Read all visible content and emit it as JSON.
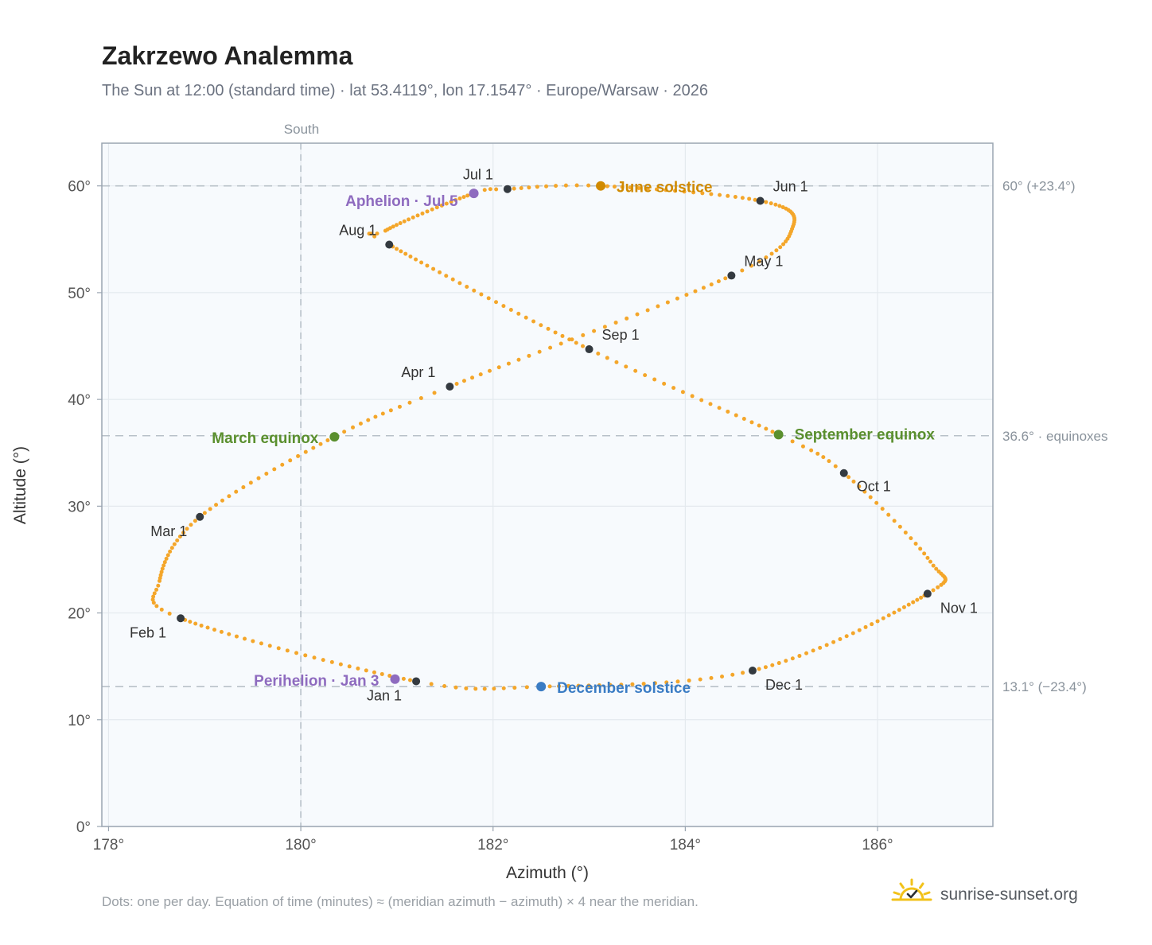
{
  "header": {
    "title": "Zakrzewo Analemma",
    "subtitle": "The Sun at 12:00 (standard time) · lat 53.4119°, lon 17.1547° · Europe/Warsaw · 2026"
  },
  "footer": {
    "note": "Dots: one per day. Equation of time (minutes) ≈ (meridian azimuth − azimuth) × 4 near the meridian.",
    "brand": "sunrise-sunset.org"
  },
  "colors": {
    "dots": "#f4a62a",
    "month_marker": "#343a40",
    "aphelion": "#8e6bbf",
    "june_solstice": "#d08a00",
    "equinox": "#5a8f2e",
    "december_solstice": "#3a7cc4",
    "grid": "#e4e9ee",
    "ref_line": "#b8c1c9",
    "plot_bg": "#f7fafd"
  },
  "chart_data": {
    "type": "scatter",
    "title": "Zakrzewo Analemma",
    "xlabel": "Azimuth (°)",
    "ylabel": "Altitude (°)",
    "xlim": [
      177.93,
      187.2
    ],
    "ylim": [
      0,
      64
    ],
    "x_ticks": [
      178,
      180,
      182,
      184,
      186
    ],
    "x_tick_labels": [
      "178°",
      "180°",
      "182°",
      "184°",
      "186°"
    ],
    "y_ticks": [
      0,
      10,
      20,
      30,
      40,
      50,
      60
    ],
    "y_tick_labels": [
      "0°",
      "10°",
      "20°",
      "30°",
      "40°",
      "50°",
      "60°"
    ],
    "grid": true,
    "meridian": {
      "azimuth": 180,
      "label": "South"
    },
    "reference_lines": [
      {
        "altitude": 60,
        "label": "60° (+23.4°)"
      },
      {
        "altitude": 36.6,
        "label": "36.6° · equinoxes"
      },
      {
        "altitude": 13.1,
        "label": "13.1° (−23.4°)"
      }
    ],
    "month_markers": [
      {
        "label": "Jan 1",
        "az": 181.2,
        "alt": 13.6
      },
      {
        "label": "Feb 1",
        "az": 178.75,
        "alt": 19.5
      },
      {
        "label": "Mar 1",
        "az": 178.95,
        "alt": 29.0
      },
      {
        "label": "Apr 1",
        "az": 181.55,
        "alt": 41.2
      },
      {
        "label": "May 1",
        "az": 184.48,
        "alt": 51.6
      },
      {
        "label": "Jun 1",
        "az": 184.78,
        "alt": 58.6
      },
      {
        "label": "Jul 1",
        "az": 182.15,
        "alt": 59.7
      },
      {
        "label": "Aug 1",
        "az": 180.92,
        "alt": 54.5
      },
      {
        "label": "Sep 1",
        "az": 183.0,
        "alt": 44.7
      },
      {
        "label": "Oct 1",
        "az": 185.65,
        "alt": 33.1
      },
      {
        "label": "Nov 1",
        "az": 186.52,
        "alt": 21.8
      },
      {
        "label": "Dec 1",
        "az": 184.7,
        "alt": 14.6
      }
    ],
    "events": [
      {
        "label": "Aphelion · Jul 5",
        "az": 181.8,
        "alt": 59.3,
        "kind": "aphelion"
      },
      {
        "label": "June solstice",
        "az": 183.12,
        "alt": 60.0,
        "kind": "june_solstice"
      },
      {
        "label": "March equinox",
        "az": 180.35,
        "alt": 36.5,
        "kind": "equinox"
      },
      {
        "label": "September equinox",
        "az": 184.97,
        "alt": 36.7,
        "kind": "equinox"
      },
      {
        "label": "Perihelion · Jan 3",
        "az": 180.98,
        "alt": 13.8,
        "kind": "aphelion"
      },
      {
        "label": "December solstice",
        "az": 182.5,
        "alt": 13.1,
        "kind": "december_solstice"
      }
    ],
    "path_keypoints": [
      {
        "day": 0,
        "az": 181.2,
        "alt": 13.6
      },
      {
        "day": 31,
        "az": 178.75,
        "alt": 19.5
      },
      {
        "day": 41,
        "az": 178.53,
        "alt": 23.0
      },
      {
        "day": 59,
        "az": 178.95,
        "alt": 29.0
      },
      {
        "day": 78,
        "az": 180.35,
        "alt": 36.5
      },
      {
        "day": 90,
        "az": 181.55,
        "alt": 41.2
      },
      {
        "day": 120,
        "az": 184.48,
        "alt": 51.6
      },
      {
        "day": 135,
        "az": 185.12,
        "alt": 56.2
      },
      {
        "day": 151,
        "az": 184.78,
        "alt": 58.6
      },
      {
        "day": 171,
        "az": 183.12,
        "alt": 60.0
      },
      {
        "day": 181,
        "az": 182.15,
        "alt": 59.7
      },
      {
        "day": 185,
        "az": 181.8,
        "alt": 59.3
      },
      {
        "day": 207,
        "az": 180.88,
        "alt": 55.8
      },
      {
        "day": 212,
        "az": 180.92,
        "alt": 54.5
      },
      {
        "day": 243,
        "az": 183.0,
        "alt": 44.7
      },
      {
        "day": 265,
        "az": 184.97,
        "alt": 36.7
      },
      {
        "day": 273,
        "az": 185.65,
        "alt": 33.1
      },
      {
        "day": 290,
        "az": 186.55,
        "alt": 24.8
      },
      {
        "day": 304,
        "az": 186.52,
        "alt": 21.8
      },
      {
        "day": 334,
        "az": 184.7,
        "alt": 14.6
      },
      {
        "day": 354,
        "az": 182.5,
        "alt": 13.1
      },
      {
        "day": 365,
        "az": 181.2,
        "alt": 13.6
      }
    ]
  }
}
